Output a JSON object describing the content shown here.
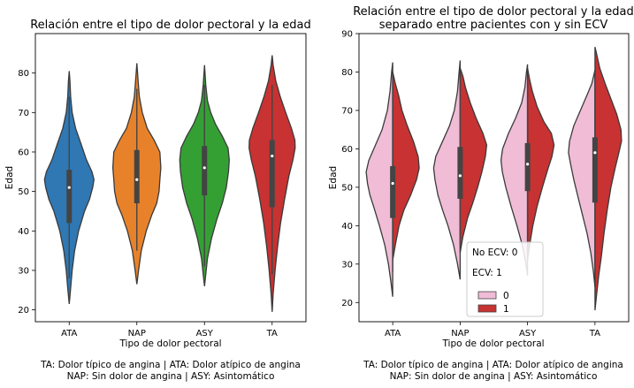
{
  "chart_data": [
    {
      "type": "violin",
      "title": "Relación entre el tipo de dolor pectoral y la edad",
      "xlabel": "Tipo de dolor pectoral",
      "ylabel": "Edad",
      "categories": [
        "ATA",
        "NAP",
        "ASY",
        "TA"
      ],
      "ylim": [
        17,
        90
      ],
      "yticks": [
        20,
        30,
        40,
        50,
        60,
        70,
        80
      ],
      "colors": [
        "#2f78b4",
        "#e8822a",
        "#34a034",
        "#c83232"
      ],
      "violins": [
        {
          "category": "ATA",
          "min": 21.5,
          "max": 80.5,
          "q1": 42,
          "median": 51,
          "q3": 55.5,
          "whisker_low": 28,
          "whisker_high": 74,
          "profile": [
            [
              21.5,
              0
            ],
            [
              25,
              0.05
            ],
            [
              30,
              0.12
            ],
            [
              35,
              0.22
            ],
            [
              40,
              0.38
            ],
            [
              45,
              0.62
            ],
            [
              48,
              0.82
            ],
            [
              51,
              0.95
            ],
            [
              53,
              1
            ],
            [
              55,
              0.92
            ],
            [
              58,
              0.7
            ],
            [
              62,
              0.48
            ],
            [
              66,
              0.26
            ],
            [
              70,
              0.12
            ],
            [
              74,
              0.06
            ],
            [
              78,
              0.03
            ],
            [
              80.5,
              0
            ]
          ]
        },
        {
          "category": "NAP",
          "min": 26.5,
          "max": 82.5,
          "q1": 47,
          "median": 53,
          "q3": 60.5,
          "whisker_low": 35,
          "whisker_high": 76,
          "profile": [
            [
              26.5,
              0
            ],
            [
              30,
              0.07
            ],
            [
              35,
              0.18
            ],
            [
              40,
              0.38
            ],
            [
              44,
              0.6
            ],
            [
              47,
              0.8
            ],
            [
              50,
              0.9
            ],
            [
              53,
              0.93
            ],
            [
              56,
              0.97
            ],
            [
              60,
              0.93
            ],
            [
              63,
              0.7
            ],
            [
              66,
              0.42
            ],
            [
              70,
              0.22
            ],
            [
              74,
              0.1
            ],
            [
              78,
              0.05
            ],
            [
              82.5,
              0
            ]
          ]
        },
        {
          "category": "ASY",
          "min": 26,
          "max": 82,
          "q1": 49,
          "median": 56,
          "q3": 61.5,
          "whisker_low": 31,
          "whisker_high": 77,
          "profile": [
            [
              26,
              0
            ],
            [
              29,
              0.05
            ],
            [
              33,
              0.12
            ],
            [
              38,
              0.28
            ],
            [
              43,
              0.5
            ],
            [
              47,
              0.72
            ],
            [
              51,
              0.88
            ],
            [
              55,
              0.97
            ],
            [
              58,
              1
            ],
            [
              61,
              0.95
            ],
            [
              64,
              0.72
            ],
            [
              67,
              0.45
            ],
            [
              70,
              0.25
            ],
            [
              73,
              0.12
            ],
            [
              77,
              0.05
            ],
            [
              82,
              0
            ]
          ]
        },
        {
          "category": "TA",
          "min": 19.5,
          "max": 84.5,
          "q1": 46,
          "median": 59,
          "q3": 63,
          "whisker_low": 29,
          "whisker_high": 77,
          "profile": [
            [
              19.5,
              0
            ],
            [
              24,
              0.04
            ],
            [
              30,
              0.12
            ],
            [
              36,
              0.22
            ],
            [
              42,
              0.34
            ],
            [
              48,
              0.5
            ],
            [
              54,
              0.68
            ],
            [
              58,
              0.84
            ],
            [
              61,
              0.93
            ],
            [
              63,
              0.92
            ],
            [
              66,
              0.78
            ],
            [
              70,
              0.55
            ],
            [
              74,
              0.33
            ],
            [
              78,
              0.15
            ],
            [
              82,
              0.04
            ],
            [
              84.5,
              0
            ]
          ]
        }
      ]
    },
    {
      "type": "split-violin",
      "title": "Relación entre el tipo de dolor pectoral y la edad\nseparado entre pacientes con y sin ECV",
      "title_lines": [
        "Relación entre el tipo de dolor pectoral y la edad",
        "separado entre pacientes con y sin ECV"
      ],
      "xlabel": "Tipo de dolor pectoral",
      "ylabel": "Edad",
      "categories": [
        "ATA",
        "NAP",
        "ASY",
        "TA"
      ],
      "ylim": [
        15,
        90
      ],
      "yticks": [
        20,
        30,
        40,
        50,
        60,
        70,
        80,
        90
      ],
      "legend": {
        "placement": "lower-center",
        "notes": [
          "No ECV: 0",
          "ECV: 1"
        ],
        "entries": [
          {
            "label": "0",
            "color": "#f0bcd6"
          },
          {
            "label": "1",
            "color": "#c83232"
          }
        ]
      },
      "boxes": [
        {
          "category": "ATA",
          "q1": 42,
          "median": 51,
          "q3": 55.5,
          "whisker_low": 28,
          "whisker_high": 76
        },
        {
          "category": "NAP",
          "q1": 47,
          "median": 53,
          "q3": 60.5,
          "whisker_low": 35,
          "whisker_high": 79
        },
        {
          "category": "ASY",
          "q1": 49,
          "median": 56,
          "q3": 61.5,
          "whisker_low": 31,
          "whisker_high": 79
        },
        {
          "category": "TA",
          "q1": 46,
          "median": 59,
          "q3": 63,
          "whisker_low": 29,
          "whisker_high": 80
        }
      ],
      "series": [
        {
          "name": "0",
          "color": "#f0bcd6",
          "side": "left",
          "profiles": [
            {
              "category": "ATA",
              "min": 21.5,
              "max": 82.5,
              "profile": [
                [
                  21.5,
                  0
                ],
                [
                  25,
                  0.06
                ],
                [
                  30,
                  0.16
                ],
                [
                  35,
                  0.3
                ],
                [
                  40,
                  0.5
                ],
                [
                  45,
                  0.72
                ],
                [
                  48,
                  0.86
                ],
                [
                  51,
                  0.95
                ],
                [
                  54,
                  1
                ],
                [
                  57,
                  0.9
                ],
                [
                  61,
                  0.65
                ],
                [
                  65,
                  0.4
                ],
                [
                  70,
                  0.2
                ],
                [
                  75,
                  0.1
                ],
                [
                  80,
                  0.04
                ],
                [
                  82.5,
                  0
                ]
              ]
            },
            {
              "category": "NAP",
              "min": 26,
              "max": 83,
              "profile": [
                [
                  26,
                  0
                ],
                [
                  30,
                  0.1
                ],
                [
                  35,
                  0.25
                ],
                [
                  40,
                  0.46
                ],
                [
                  44,
                  0.66
                ],
                [
                  48,
                  0.84
                ],
                [
                  52,
                  0.95
                ],
                [
                  55,
                  1
                ],
                [
                  58,
                  0.92
                ],
                [
                  62,
                  0.66
                ],
                [
                  66,
                  0.4
                ],
                [
                  70,
                  0.22
                ],
                [
                  75,
                  0.1
                ],
                [
                  80,
                  0.04
                ],
                [
                  83,
                  0
                ]
              ]
            },
            {
              "category": "ASY",
              "min": 27,
              "max": 82,
              "profile": [
                [
                  27,
                  0
                ],
                [
                  31,
                  0.08
                ],
                [
                  35,
                  0.2
                ],
                [
                  40,
                  0.4
                ],
                [
                  45,
                  0.62
                ],
                [
                  50,
                  0.82
                ],
                [
                  54,
                  0.95
                ],
                [
                  57,
                  1
                ],
                [
                  60,
                  0.94
                ],
                [
                  64,
                  0.72
                ],
                [
                  68,
                  0.45
                ],
                [
                  72,
                  0.22
                ],
                [
                  76,
                  0.1
                ],
                [
                  80,
                  0.04
                ],
                [
                  82,
                  0
                ]
              ]
            },
            {
              "category": "TA",
              "min": 24,
              "max": 80.5,
              "profile": [
                [
                  24,
                  0
                ],
                [
                  28,
                  0.06
                ],
                [
                  33,
                  0.16
                ],
                [
                  38,
                  0.3
                ],
                [
                  43,
                  0.48
                ],
                [
                  48,
                  0.66
                ],
                [
                  52,
                  0.8
                ],
                [
                  56,
                  0.92
                ],
                [
                  59,
                  1
                ],
                [
                  62,
                  0.96
                ],
                [
                  66,
                  0.8
                ],
                [
                  70,
                  0.55
                ],
                [
                  74,
                  0.3
                ],
                [
                  77,
                  0.12
                ],
                [
                  80.5,
                  0
                ]
              ]
            }
          ]
        },
        {
          "name": "1",
          "color": "#c83232",
          "side": "right",
          "profiles": [
            {
              "category": "ATA",
              "min": 31,
              "max": 80,
              "profile": [
                [
                  31,
                  0
                ],
                [
                  35,
                  0.1
                ],
                [
                  40,
                  0.24
                ],
                [
                  44,
                  0.42
                ],
                [
                  48,
                  0.68
                ],
                [
                  52,
                  0.9
                ],
                [
                  55,
                  1
                ],
                [
                  58,
                  0.96
                ],
                [
                  62,
                  0.78
                ],
                [
                  66,
                  0.55
                ],
                [
                  70,
                  0.35
                ],
                [
                  74,
                  0.22
                ],
                [
                  77,
                  0.1
                ],
                [
                  80,
                  0
                ]
              ]
            },
            {
              "category": "NAP",
              "min": 33,
              "max": 81,
              "profile": [
                [
                  33,
                  0
                ],
                [
                  37,
                  0.1
                ],
                [
                  42,
                  0.28
                ],
                [
                  46,
                  0.48
                ],
                [
                  50,
                  0.66
                ],
                [
                  54,
                  0.82
                ],
                [
                  58,
                  0.95
                ],
                [
                  61,
                  1
                ],
                [
                  64,
                  0.86
                ],
                [
                  68,
                  0.6
                ],
                [
                  72,
                  0.38
                ],
                [
                  76,
                  0.2
                ],
                [
                  79,
                  0.1
                ],
                [
                  81,
                  0
                ]
              ]
            },
            {
              "category": "ASY",
              "min": 31,
              "max": 81,
              "profile": [
                [
                  31,
                  0
                ],
                [
                  35,
                  0.08
                ],
                [
                  40,
                  0.2
                ],
                [
                  45,
                  0.36
                ],
                [
                  50,
                  0.56
                ],
                [
                  55,
                  0.78
                ],
                [
                  58,
                  0.92
                ],
                [
                  61,
                  1
                ],
                [
                  64,
                  0.9
                ],
                [
                  67,
                  0.62
                ],
                [
                  71,
                  0.36
                ],
                [
                  75,
                  0.18
                ],
                [
                  78,
                  0.08
                ],
                [
                  81,
                  0
                ]
              ]
            },
            {
              "category": "TA",
              "min": 18,
              "max": 86.5,
              "profile": [
                [
                  18,
                  0
                ],
                [
                  22,
                  0.06
                ],
                [
                  27,
                  0.14
                ],
                [
                  32,
                  0.24
                ],
                [
                  38,
                  0.34
                ],
                [
                  44,
                  0.46
                ],
                [
                  50,
                  0.6
                ],
                [
                  55,
                  0.76
                ],
                [
                  59,
                  0.9
                ],
                [
                  62,
                  1
                ],
                [
                  65,
                  0.98
                ],
                [
                  69,
                  0.82
                ],
                [
                  73,
                  0.6
                ],
                [
                  77,
                  0.38
                ],
                [
                  81,
                  0.18
                ],
                [
                  85,
                  0.05
                ],
                [
                  86.5,
                  0
                ]
              ]
            }
          ]
        }
      ]
    }
  ],
  "captions": [
    {
      "line1": "TA: Dolor típico de angina | ATA: Dolor atípico de angina",
      "line2": "NAP: Sin dolor de angina | ASY: Asintomático"
    },
    {
      "line1": "TA: Dolor típico de angina | ATA: Dolor atípico de angina",
      "line2": "NAP: Sin dolor de angina | ASY: Asintomático"
    }
  ]
}
